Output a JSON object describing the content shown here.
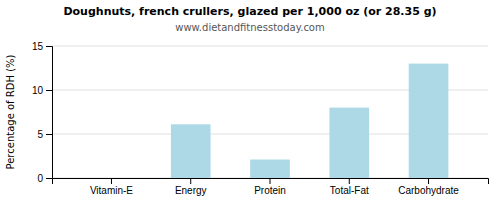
{
  "chart_data": {
    "type": "bar",
    "title": "Doughnuts, french crullers, glazed per 1,000 oz (or 28.35 g)",
    "subtitle": "www.dietandfitnesstoday.com",
    "categories": [
      "Vitamin-E",
      "Energy",
      "Protein",
      "Total-Fat",
      "Carbohydrate"
    ],
    "values": [
      0,
      6.1,
      2.1,
      8.0,
      13.0
    ],
    "color": "#add8e6",
    "ylabel": "Percentage of RDH (%)",
    "ylim": [
      0,
      15
    ],
    "yticks": [
      0,
      5,
      10,
      15
    ],
    "grid": true
  }
}
